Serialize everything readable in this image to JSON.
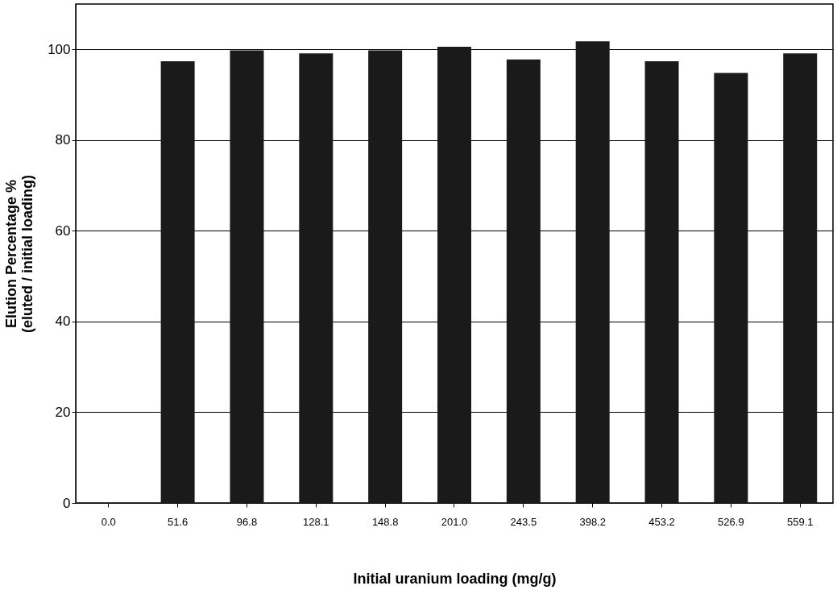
{
  "chart_data": {
    "type": "bar",
    "xlabel": "Initial uranium loading (mg/g)",
    "ylabel": "Elution Percentage % (eluted / initial loading)",
    "categories": [
      "0.0",
      "51.6",
      "96.8",
      "128.1",
      "148.8",
      "201.0",
      "243.5",
      "398.2",
      "453.2",
      "526.9",
      "559.1"
    ],
    "values": [
      0,
      97.4,
      99.8,
      99.1,
      99.8,
      100.6,
      97.8,
      101.8,
      97.4,
      94.8,
      99.1
    ],
    "color": "#1a1a1a",
    "ylim": [
      0,
      110
    ],
    "yticks": [
      0,
      20,
      40,
      60,
      80,
      100
    ],
    "grid": "y"
  }
}
